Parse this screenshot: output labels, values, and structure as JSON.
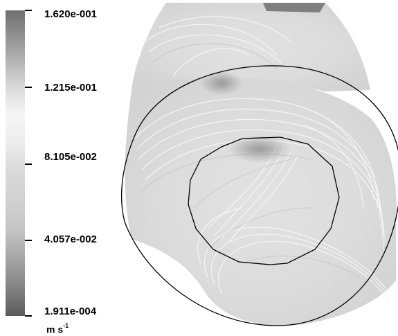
{
  "legend": {
    "ticks": [
      {
        "label": "1.620e-001"
      },
      {
        "label": "1.215e-001"
      },
      {
        "label": "8.105e-002"
      },
      {
        "label": "4.057e-002"
      },
      {
        "label": "1.911e-004"
      }
    ],
    "unit_base": "m s",
    "unit_exp": "-1"
  }
}
